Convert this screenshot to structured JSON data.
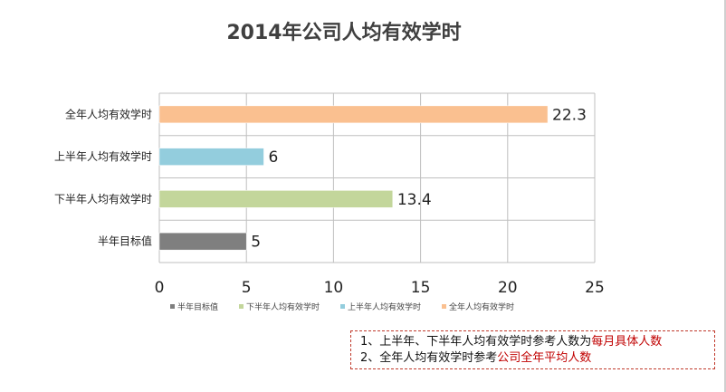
{
  "chart_data": {
    "type": "bar",
    "orientation": "horizontal",
    "title": "2014年公司人均有效学时",
    "categories": [
      "全年人均有效学时",
      "上半年人均有效学时",
      "下半年人均有效学时",
      "半年目标值"
    ],
    "values": [
      22.3,
      6,
      13.4,
      5
    ],
    "data_labels": [
      "22.3",
      "6",
      "13.4",
      "5"
    ],
    "bar_colors": [
      "#FAC090",
      "#93CDDD",
      "#C3D69B",
      "#7F7F7F"
    ],
    "xlim": [
      0,
      25
    ],
    "xticks": [
      0,
      5,
      10,
      15,
      20,
      25
    ],
    "grid": true,
    "legend": {
      "placement": "bottom",
      "entries": [
        {
          "label": "半年目标值",
          "color": "#7F7F7F"
        },
        {
          "label": "下半年人均有效学时",
          "color": "#C3D69B"
        },
        {
          "label": "上半年人均有效学时",
          "color": "#93CDDD"
        },
        {
          "label": "全年人均有效学时",
          "color": "#FAC090"
        }
      ]
    }
  },
  "notes": {
    "line1_prefix": "1、上半年、下半年人均有效学时参考人数为",
    "line1_highlight": "每月具体人数",
    "line2_prefix": "2、全年人均有效学时参考",
    "line2_highlight": "公司全年平均人数"
  }
}
